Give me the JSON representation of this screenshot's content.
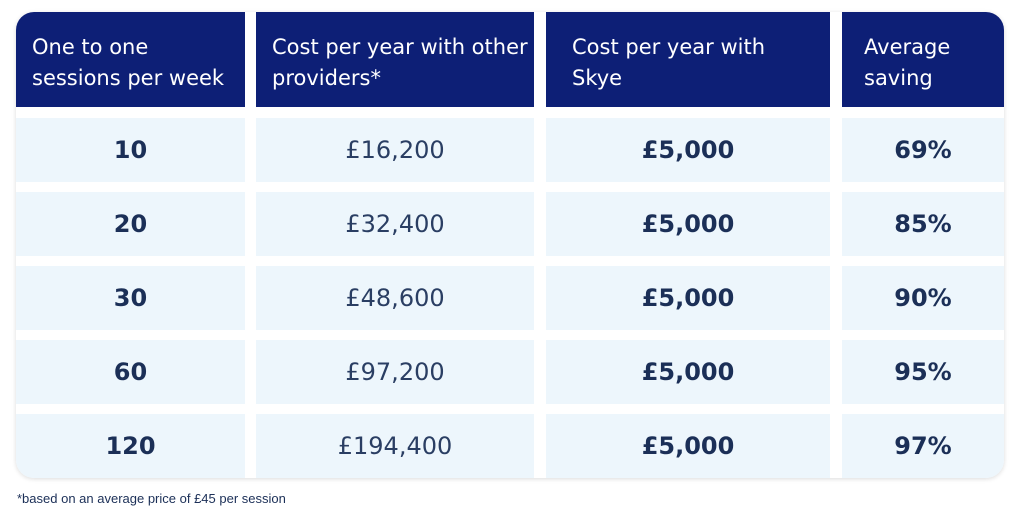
{
  "table": {
    "headers": [
      "One to one\nsessions per week",
      "Cost per year with other\nproviders*",
      "Cost per year with\nSkye",
      "Average\nsaving"
    ],
    "rows": [
      [
        "10",
        "£16,200",
        "£5,000",
        "69%"
      ],
      [
        "20",
        "£32,400",
        "£5,000",
        "85%"
      ],
      [
        "30",
        "£48,600",
        "£5,000",
        "90%"
      ],
      [
        "60",
        "£97,200",
        "£5,000",
        "95%"
      ],
      [
        "120",
        "£194,400",
        "£5,000",
        "97%"
      ]
    ]
  },
  "footnote": "*based on an average price of £45 per session",
  "colors": {
    "header_bg": "#0d1f76",
    "cell_bg": "#edf6fc",
    "text": "#1b2f57"
  }
}
